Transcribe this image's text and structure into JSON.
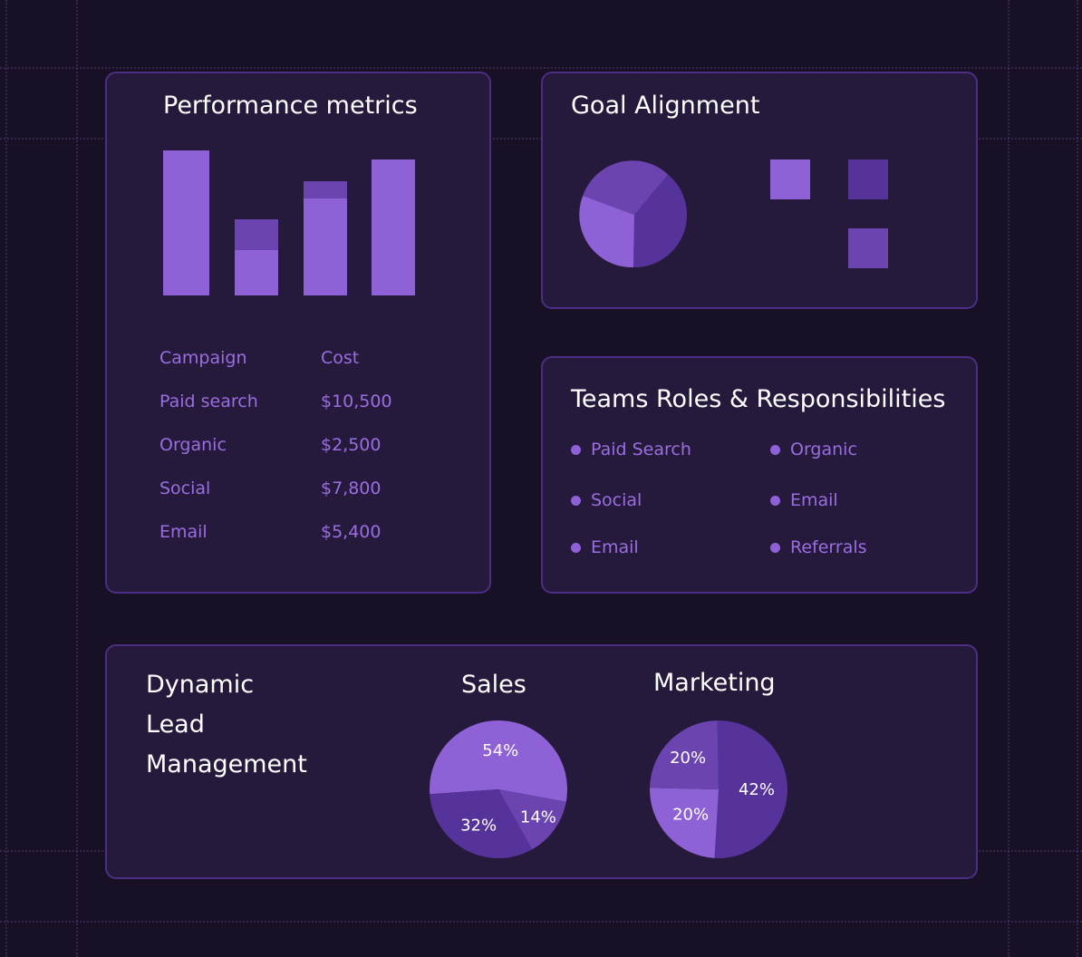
{
  "performance": {
    "title": "Performance metrics",
    "table": {
      "headers": [
        "Campaign",
        "Cost"
      ],
      "rows": [
        [
          "Paid search",
          "$10,500"
        ],
        [
          "Organic",
          "$2,500"
        ],
        [
          "Social",
          "$7,800"
        ],
        [
          "Email",
          "$5,400"
        ]
      ]
    }
  },
  "goal": {
    "title": "Goal Alignment"
  },
  "teams": {
    "title": "Teams Roles & Responsibilities",
    "items": [
      "Paid Search",
      "Organic",
      "Social",
      "Email",
      "Email",
      "Referrals"
    ]
  },
  "lead": {
    "title_lines": [
      "Dynamic",
      "Lead",
      "Management"
    ]
  },
  "sales": {
    "title": "Sales",
    "labels": [
      "54%",
      "14%",
      "32%"
    ]
  },
  "marketing": {
    "title": "Marketing",
    "labels": [
      "20%",
      "42%",
      "20%"
    ]
  },
  "colors": {
    "background": "#181024",
    "card": "#261a3c",
    "border": "#4b2d86",
    "purple_light": "#8e62d6",
    "purple_mid": "#6b44b0",
    "purple_dark": "#56339a",
    "text_accent": "#9a6ee0"
  },
  "chart_data": [
    {
      "type": "pie",
      "title": "Sales",
      "slices": [
        {
          "label": "54%",
          "value": 54
        },
        {
          "label": "14%",
          "value": 14
        },
        {
          "label": "32%",
          "value": 32
        }
      ]
    },
    {
      "type": "pie",
      "title": "Marketing",
      "slices": [
        {
          "label": "42%",
          "value": 42
        },
        {
          "label": "20%",
          "value": 20
        },
        {
          "label": "20%",
          "value": 20
        }
      ]
    }
  ]
}
